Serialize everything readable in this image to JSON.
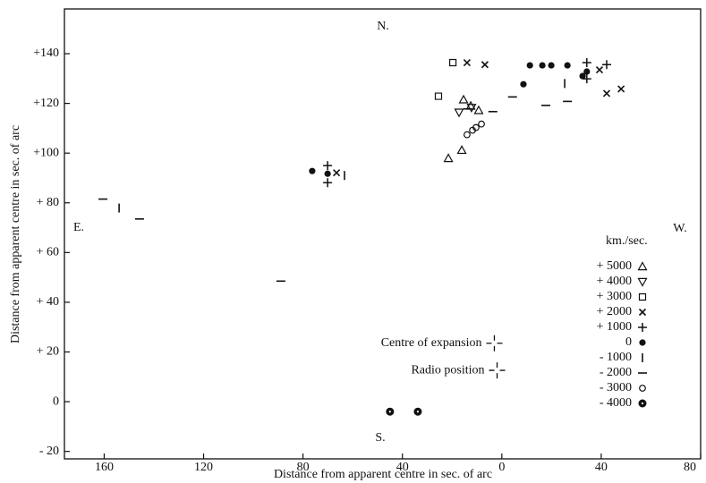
{
  "chart_data": {
    "type": "scatter",
    "x_label": "Distance from apparent centre in  sec. of arc",
    "y_label": "Distance from apparent centre in  sec. of arc",
    "xlim": [
      176,
      -80
    ],
    "ylim": [
      -23,
      158
    ],
    "xticks": [
      160,
      120,
      80,
      40,
      0,
      {
        "value": -40,
        "label": "40"
      },
      {
        "value": -80,
        "label": "80"
      }
    ],
    "yticks": [
      {
        "value": 140,
        "label": "+140"
      },
      {
        "value": 120,
        "label": "+120"
      },
      {
        "value": 100,
        "label": "+100"
      },
      {
        "value": 80,
        "label": "+ 80"
      },
      {
        "value": 60,
        "label": "+ 60"
      },
      {
        "value": 40,
        "label": "+ 40"
      },
      {
        "value": 20,
        "label": "+ 20"
      },
      0,
      {
        "value": -20,
        "label": "- 20"
      }
    ],
    "compass": {
      "north": "N.",
      "south": "S.",
      "east": "E.",
      "west": "W."
    },
    "legend_title": "km./sec.",
    "series": [
      {
        "name": "+ 5000",
        "marker": "triangle",
        "color": "#111",
        "x": [
          15.4,
          12.5,
          9.3,
          21.5,
          16.1
        ],
        "values": [
          121.5,
          119.0,
          117.2,
          97.9,
          101.2
        ]
      },
      {
        "name": "+ 4000",
        "marker": "triangle-down",
        "color": "#111",
        "x": [
          17.2,
          12.2
        ],
        "values": [
          116.4,
          118.3
        ]
      },
      {
        "name": "+ 3000",
        "marker": "square",
        "color": "#111",
        "x": [
          19.7,
          25.5
        ],
        "values": [
          136.4,
          122.9
        ]
      },
      {
        "name": "+ 2000",
        "marker": "cross",
        "color": "#111",
        "x": [
          14.0,
          6.8,
          66.5,
          -39.3,
          -42.2,
          -48.0
        ],
        "values": [
          136.4,
          135.6,
          92.1,
          133.5,
          124.0,
          125.8
        ]
      },
      {
        "name": "+ 1000",
        "marker": "plus",
        "color": "#111",
        "x": [
          70.1,
          70.1,
          -34.2,
          -34.2,
          -42.2
        ],
        "values": [
          95.0,
          88.1,
          136.4,
          129.9,
          135.6
        ]
      },
      {
        "name": "0",
        "marker": "dot",
        "color": "#111",
        "x": [
          76.3,
          70.1,
          -11.3,
          -16.3,
          -19.9,
          -26.4,
          -8.7,
          -32.5,
          -34.2
        ],
        "values": [
          92.8,
          91.7,
          135.3,
          135.3,
          135.3,
          135.3,
          127.7,
          131.0,
          132.8
        ]
      },
      {
        "name": "- 1000",
        "marker": "vbar",
        "color": "#111",
        "x": [
          154.0,
          63.3,
          -25.3
        ],
        "values": [
          77.9,
          91.0,
          128.0
        ]
      },
      {
        "name": "- 2000",
        "marker": "hbar",
        "color": "#111",
        "x": [
          160.5,
          145.8,
          88.9,
          13.7,
          3.6,
          -4.3,
          -17.7,
          -26.4
        ],
        "values": [
          81.5,
          73.5,
          48.5,
          117.8,
          116.7,
          122.6,
          119.2,
          120.8
        ]
      },
      {
        "name": "- 3000",
        "marker": "circle",
        "color": "#111",
        "x": [
          14.0,
          11.8,
          10.4,
          8.2
        ],
        "values": [
          107.4,
          109.2,
          110.3,
          111.7
        ]
      },
      {
        "name": "- 4000",
        "marker": "circle-dot",
        "color": "#111",
        "x": [
          45.0,
          33.8
        ],
        "values": [
          -4.0,
          -4.0
        ]
      }
    ],
    "reference_points": [
      {
        "label": "Centre of expansion",
        "x": 3.0,
        "y": 23.5
      },
      {
        "label": "Radio position",
        "x": 1.9,
        "y": 12.6
      }
    ]
  }
}
